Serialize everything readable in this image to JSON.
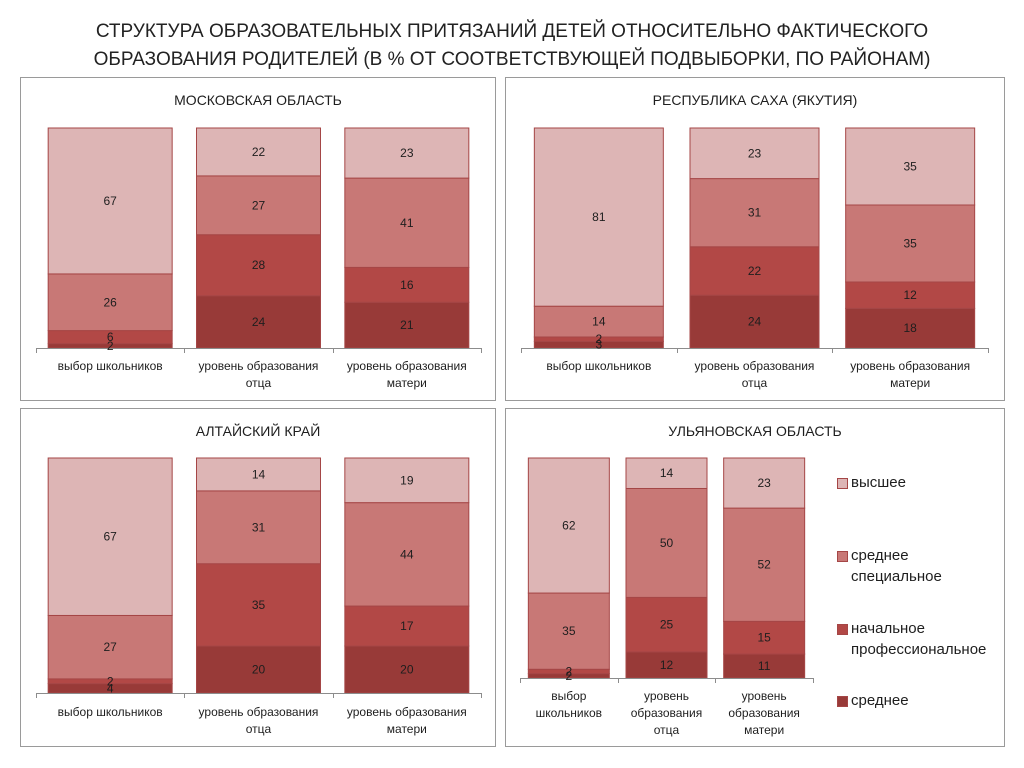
{
  "title": {
    "lines": [
      "СТРУКТУРА ОБРАЗОВАТЕЛЬНЫХ ПРИТЯЗАНИЙ ДЕТЕЙ ОТНОСИТЕЛЬНО ФАКТИЧЕСКОГО",
      "ОБРАЗОВАНИЯ РОДИТЕЛЕЙ (В % ОТ СООТВЕТСТВУЮЩЕЙ ПОДВЫБОРКИ, ПО РАЙОНАМ)"
    ]
  },
  "legend": [
    {
      "label": "высшее",
      "color": "#ddb5b5"
    },
    {
      "label": "среднее специальное",
      "color": "#c87876"
    },
    {
      "label": "начальное профессиональное",
      "color": "#b24846"
    },
    {
      "label": "среднее",
      "color": "#983a38"
    }
  ],
  "style": {
    "bar_outline": "#a54646",
    "axis": "#8c8c8c",
    "panel_border": "#9a9a9a"
  },
  "chart_data": [
    {
      "type": "bar",
      "stacked": true,
      "data_labels": true,
      "grid": false,
      "legend_position": "none",
      "title": "МОСКОВСКАЯ ОБЛАСТЬ",
      "categories": [
        "выбор школьников",
        "уровень образования отца",
        "уровень образования матери"
      ],
      "series": [
        {
          "name": "среднее",
          "values": [
            2,
            24,
            21
          ]
        },
        {
          "name": "начальное профессиональное",
          "values": [
            6,
            28,
            16
          ]
        },
        {
          "name": "среднее специальное",
          "values": [
            26,
            27,
            41
          ]
        },
        {
          "name": "высшее",
          "values": [
            67,
            22,
            23
          ]
        }
      ]
    },
    {
      "type": "bar",
      "stacked": true,
      "data_labels": true,
      "grid": false,
      "legend_position": "none",
      "title": "РЕСПУБЛИКА САХА (ЯКУТИЯ)",
      "categories": [
        "выбор школьников",
        "уровень образования отца",
        "уровень образования матери"
      ],
      "series": [
        {
          "name": "среднее",
          "values": [
            3,
            24,
            18
          ]
        },
        {
          "name": "начальное профессиональное",
          "values": [
            2,
            22,
            12
          ]
        },
        {
          "name": "среднее специальное",
          "values": [
            14,
            31,
            35
          ]
        },
        {
          "name": "высшее",
          "values": [
            81,
            23,
            35
          ]
        }
      ]
    },
    {
      "type": "bar",
      "stacked": true,
      "data_labels": true,
      "grid": false,
      "legend_position": "none",
      "title": "АЛТАЙСКИЙ КРАЙ",
      "categories": [
        "выбор школьников",
        "уровень образования отца",
        "уровень образования матери"
      ],
      "series": [
        {
          "name": "среднее",
          "values": [
            4,
            20,
            20
          ]
        },
        {
          "name": "начальное профессиональное",
          "values": [
            2,
            35,
            17
          ]
        },
        {
          "name": "среднее специальное",
          "values": [
            27,
            31,
            44
          ]
        },
        {
          "name": "высшее",
          "values": [
            67,
            14,
            19
          ]
        }
      ]
    },
    {
      "type": "bar",
      "stacked": true,
      "data_labels": true,
      "grid": false,
      "legend_position": "right",
      "title": "УЛЬЯНОВСКАЯ ОБЛАСТЬ",
      "categories": [
        "выбор школьников",
        "уровень образования отца",
        "уровень образования матери"
      ],
      "series": [
        {
          "name": "среднее",
          "values": [
            2,
            12,
            11
          ]
        },
        {
          "name": "начальное профессиональное",
          "values": [
            2,
            25,
            15
          ]
        },
        {
          "name": "среднее специальное",
          "values": [
            35,
            50,
            52
          ]
        },
        {
          "name": "высшее",
          "values": [
            62,
            14,
            23
          ]
        }
      ]
    }
  ]
}
